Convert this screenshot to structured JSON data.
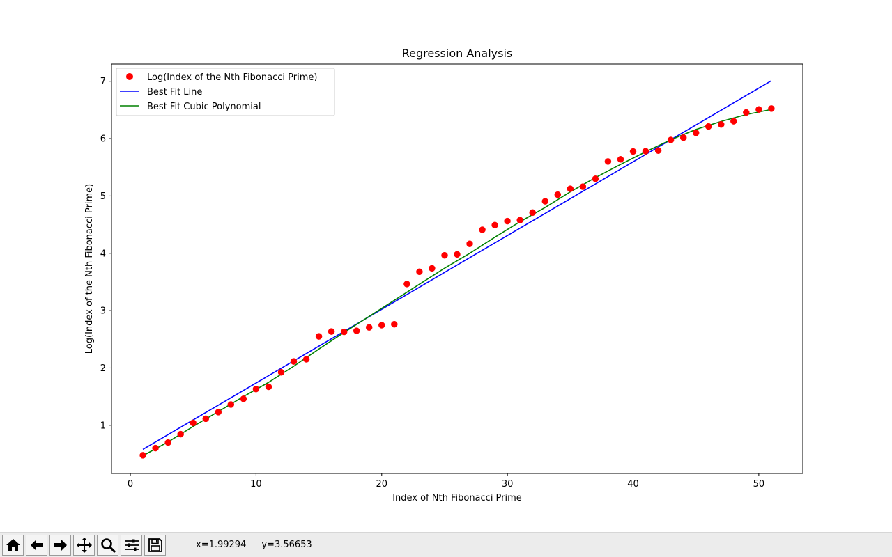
{
  "chart_data": {
    "type": "scatter",
    "title": "Regression Analysis",
    "xlabel": "Index of Nth Fibonacci Prime",
    "ylabel": "Log(Index of the Nth Fibonacci Prime)",
    "xlim": [
      -1.5,
      53.5
    ],
    "ylim": [
      0.16,
      7.3
    ],
    "x_ticks": [
      0,
      10,
      20,
      30,
      40,
      50
    ],
    "y_ticks": [
      1,
      2,
      3,
      4,
      5,
      6,
      7
    ],
    "grid": false,
    "legend_position": "top-left",
    "series": [
      {
        "name": "Log(Index of the Nth Fibonacci Prime)",
        "style": "markers",
        "color": "#ff0000",
        "x": [
          1,
          2,
          3,
          4,
          5,
          6,
          7,
          8,
          9,
          10,
          11,
          12,
          13,
          14,
          15,
          16,
          17,
          18,
          19,
          20,
          21,
          22,
          23,
          24,
          25,
          26,
          27,
          28,
          29,
          30,
          31,
          32,
          33,
          34,
          35,
          36,
          37,
          38,
          39,
          40,
          41,
          42,
          43,
          44,
          45,
          46,
          47,
          48,
          49,
          50,
          51
        ],
        "y": [
          0.477,
          0.602,
          0.699,
          0.845,
          1.041,
          1.114,
          1.23,
          1.362,
          1.462,
          1.633,
          1.672,
          1.924,
          2.114,
          2.152,
          2.551,
          2.636,
          2.63,
          2.648,
          2.708,
          2.747,
          2.762,
          3.464,
          3.678,
          3.737,
          3.964,
          3.981,
          4.165,
          4.41,
          4.491,
          4.56,
          4.578,
          4.71,
          4.907,
          5.022,
          5.125,
          5.162,
          5.299,
          5.601,
          5.639,
          5.776,
          5.781,
          5.792,
          5.976,
          6.017,
          6.1,
          6.212,
          6.247,
          6.303,
          6.456,
          6.508,
          6.524
        ]
      },
      {
        "name": "Best Fit Line",
        "style": "line",
        "color": "#0000ff",
        "x": [
          1,
          51
        ],
        "y": [
          0.58,
          7.01
        ]
      },
      {
        "name": "Best Fit Cubic Polynomial",
        "style": "line",
        "color": "#008000",
        "x": [
          1,
          3,
          5,
          7,
          9,
          11,
          13,
          15,
          17,
          19,
          21,
          23,
          25,
          27,
          29,
          31,
          33,
          35,
          37,
          39,
          41,
          43,
          45,
          47,
          49,
          51
        ],
        "y": [
          0.47,
          0.71,
          0.98,
          1.24,
          1.5,
          1.75,
          2.03,
          2.33,
          2.62,
          2.9,
          3.18,
          3.46,
          3.74,
          4.0,
          4.28,
          4.55,
          4.8,
          5.07,
          5.32,
          5.55,
          5.77,
          5.98,
          6.16,
          6.3,
          6.42,
          6.51
        ]
      }
    ]
  },
  "toolbar": {
    "buttons": [
      {
        "icon": "home-icon"
      },
      {
        "icon": "back-arrow-icon"
      },
      {
        "icon": "forward-arrow-icon"
      },
      {
        "icon": "pan-move-icon"
      },
      {
        "icon": "zoom-magnifier-icon"
      },
      {
        "icon": "subplots-sliders-icon"
      },
      {
        "icon": "save-floppy-icon"
      }
    ],
    "coords": {
      "x": "x=1.99294",
      "y": "y=3.56653"
    }
  }
}
